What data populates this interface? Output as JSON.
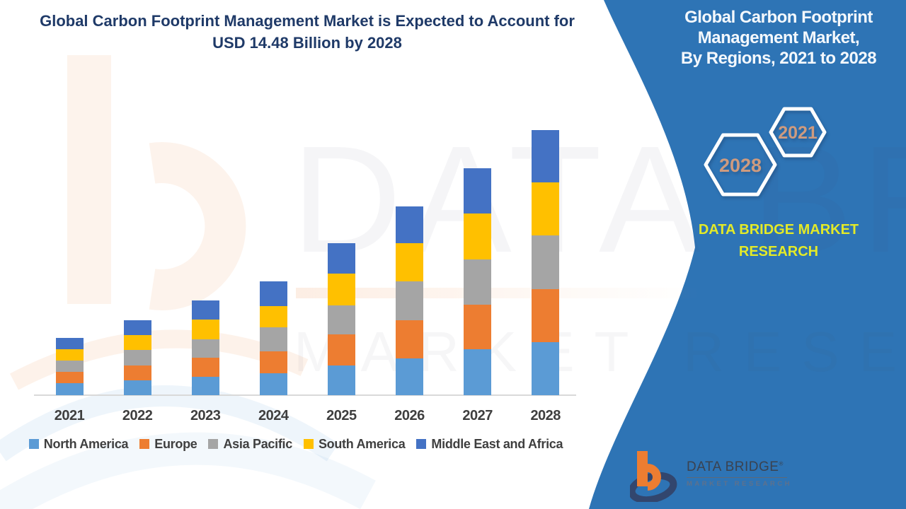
{
  "title": "Global Carbon Footprint Management Market is Expected to Account for\nUSD 14.48 Billion by 2028",
  "panel": {
    "heading": "Global Carbon Footprint\nManagement Market,\nBy Regions, 2021 to 2028",
    "hexagons": [
      {
        "label": "2021"
      },
      {
        "label": "2028"
      }
    ],
    "brand_text": "DATA BRIDGE MARKET\nRESEARCH"
  },
  "watermark": {
    "line1": "DATA BRIDGE",
    "line2": "MARKET RESEARCH"
  },
  "footer_logo": {
    "name": "DATA BRIDGE",
    "registered": "®",
    "tagline": "MARKET RESEARCH"
  },
  "chart_data": {
    "type": "bar",
    "stacked": true,
    "title": "Global Carbon Footprint Management Market, By Regions, 2021 to 2028",
    "unit": "USD Billion",
    "annotation": "USD 14.48 Billion by 2028",
    "categories": [
      "2021",
      "2022",
      "2023",
      "2024",
      "2025",
      "2026",
      "2027",
      "2028"
    ],
    "series": [
      {
        "name": "North America",
        "color": "#5B9BD5",
        "values": [
          0.67,
          0.81,
          1.0,
          1.2,
          1.62,
          2.01,
          2.5,
          2.91
        ]
      },
      {
        "name": "Europe",
        "color": "#ED7D31",
        "values": [
          0.61,
          0.82,
          1.03,
          1.21,
          1.7,
          2.09,
          2.44,
          2.89
        ]
      },
      {
        "name": "Asia Pacific",
        "color": "#A5A5A5",
        "values": [
          0.62,
          0.85,
          1.02,
          1.29,
          1.58,
          2.1,
          2.47,
          2.91
        ]
      },
      {
        "name": "South America",
        "color": "#FFC000",
        "values": [
          0.62,
          0.8,
          1.07,
          1.17,
          1.74,
          2.12,
          2.51,
          2.92
        ]
      },
      {
        "name": "Middle East and Africa",
        "color": "#4472C4",
        "values": [
          0.61,
          0.81,
          1.05,
          1.34,
          1.65,
          2.0,
          2.47,
          2.85
        ]
      }
    ],
    "totals_usd_billion": [
      3.13,
      4.09,
      5.17,
      6.21,
      8.29,
      10.32,
      12.39,
      14.48
    ],
    "ylim": [
      0,
      16
    ],
    "y_axis_visible": false,
    "grid": false,
    "legend_position": "bottom"
  },
  "colors": {
    "panel_blue": "#2E74B5",
    "title_blue": "#1F3A68",
    "label_gray": "#3F3F3F",
    "axis_line": "#D9D9D9",
    "hex_year_text": "#CE9B7F",
    "brand_yellow": "#E3EA28",
    "logo_orange": "#ED7D31",
    "logo_navy": "#32466E"
  }
}
